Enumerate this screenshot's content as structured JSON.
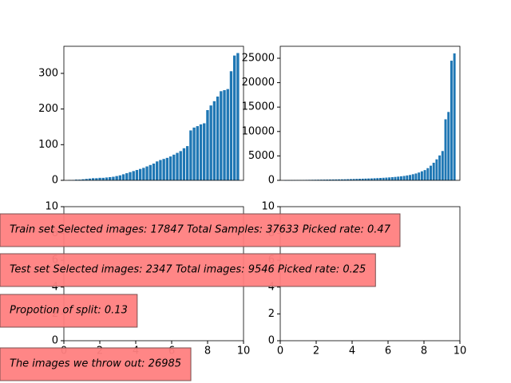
{
  "chart_data": [
    {
      "type": "bar",
      "color": "#1f77b4",
      "categories": [
        null,
        null,
        null,
        null,
        null,
        null,
        null,
        null,
        null,
        null,
        null,
        null,
        null,
        null,
        null,
        null,
        null,
        null,
        null,
        null,
        null,
        null,
        null,
        null,
        null,
        null,
        null,
        null,
        null,
        null,
        null,
        null,
        null,
        null,
        null,
        null,
        null,
        null,
        null,
        null,
        null,
        null,
        null,
        null,
        null,
        null,
        null,
        null,
        null,
        null,
        null
      ],
      "values": [
        1,
        1,
        2,
        2,
        3,
        4,
        5,
        6,
        6,
        7,
        7,
        8,
        9,
        10,
        12,
        14,
        17,
        20,
        23,
        26,
        29,
        32,
        35,
        39,
        43,
        47,
        53,
        57,
        60,
        63,
        67,
        72,
        77,
        82,
        90,
        96,
        140,
        148,
        152,
        157,
        160,
        197,
        210,
        222,
        235,
        250,
        253,
        256,
        306,
        350,
        357
      ],
      "ylim": [
        0,
        376
      ],
      "yticks": [
        0,
        100,
        200,
        300
      ]
    },
    {
      "type": "bar",
      "color": "#1f77b4",
      "categories": [
        null,
        null,
        null,
        null,
        null,
        null,
        null,
        null,
        null,
        null,
        null,
        null,
        null,
        null,
        null,
        null,
        null,
        null,
        null,
        null,
        null,
        null,
        null,
        null,
        null,
        null,
        null,
        null,
        null,
        null,
        null,
        null,
        null,
        null,
        null,
        null,
        null,
        null,
        null,
        null,
        null,
        null,
        null,
        null,
        null,
        null,
        null,
        null,
        null,
        null,
        null,
        null,
        null,
        null,
        null,
        null,
        null,
        null
      ],
      "values": [
        20,
        30,
        40,
        50,
        60,
        70,
        80,
        90,
        100,
        110,
        120,
        130,
        140,
        150,
        160,
        170,
        180,
        190,
        200,
        210,
        220,
        240,
        260,
        280,
        300,
        320,
        340,
        360,
        380,
        400,
        430,
        460,
        490,
        520,
        560,
        600,
        650,
        700,
        760,
        820,
        900,
        1000,
        1100,
        1250,
        1400,
        1600,
        1850,
        2100,
        2500,
        3000,
        3600,
        4300,
        5100,
        6000,
        12500,
        14000,
        24500,
        26000
      ],
      "ylim": [
        0,
        27450
      ],
      "yticks": [
        0,
        5000,
        10000,
        15000,
        20000,
        25000
      ]
    },
    {
      "type": "axes",
      "xlim": [
        0,
        10
      ],
      "xticks": [
        0,
        2,
        4,
        6,
        8,
        10
      ],
      "ylim": [
        0,
        10
      ],
      "yticks": [
        0,
        2,
        4,
        6,
        8,
        10
      ]
    },
    {
      "type": "axes",
      "xlim": [
        0,
        10
      ],
      "xticks": [
        0,
        2,
        4,
        6,
        8,
        10
      ],
      "ylim": [
        0,
        10
      ],
      "yticks": [
        0,
        2,
        4,
        6,
        8,
        10
      ]
    }
  ],
  "text_boxes": {
    "color": "#ff7f7f",
    "items": [
      "Train set Selected images: 17847  Total Samples: 37633  Picked rate: 0.47",
      "Test set Selected images: 2347  Total images: 9546  Picked rate: 0.25",
      "Propotion of split: 0.13",
      "The images we throw out: 26985"
    ]
  }
}
